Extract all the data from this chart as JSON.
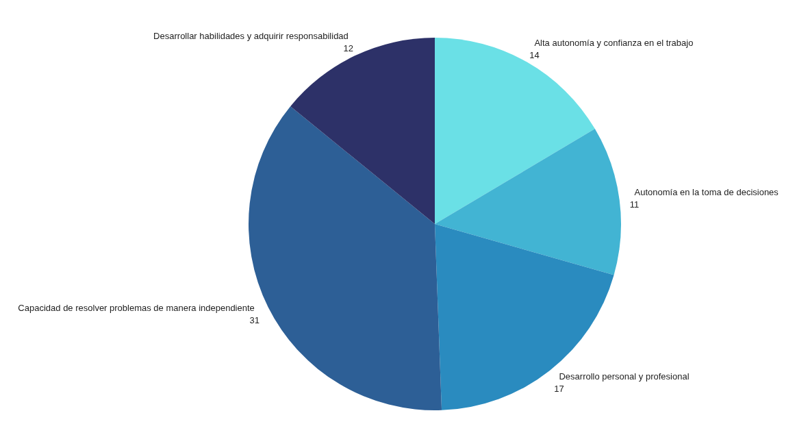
{
  "chart_data": {
    "type": "pie",
    "categories": [
      "Alta autonomía y confianza en el trabajo",
      "Autonomía en la toma de decisiones",
      "Desarrollo personal y profesional",
      "Capacidad de resolver problemas de manera independiente",
      "Desarrollar habilidades y adquirir responsabilidad"
    ],
    "values": [
      14,
      11,
      17,
      31,
      12
    ],
    "colors": [
      "#6ae0e6",
      "#42b4d3",
      "#2a8bbf",
      "#2d5f96",
      "#2d3168"
    ],
    "data_labels": true
  }
}
